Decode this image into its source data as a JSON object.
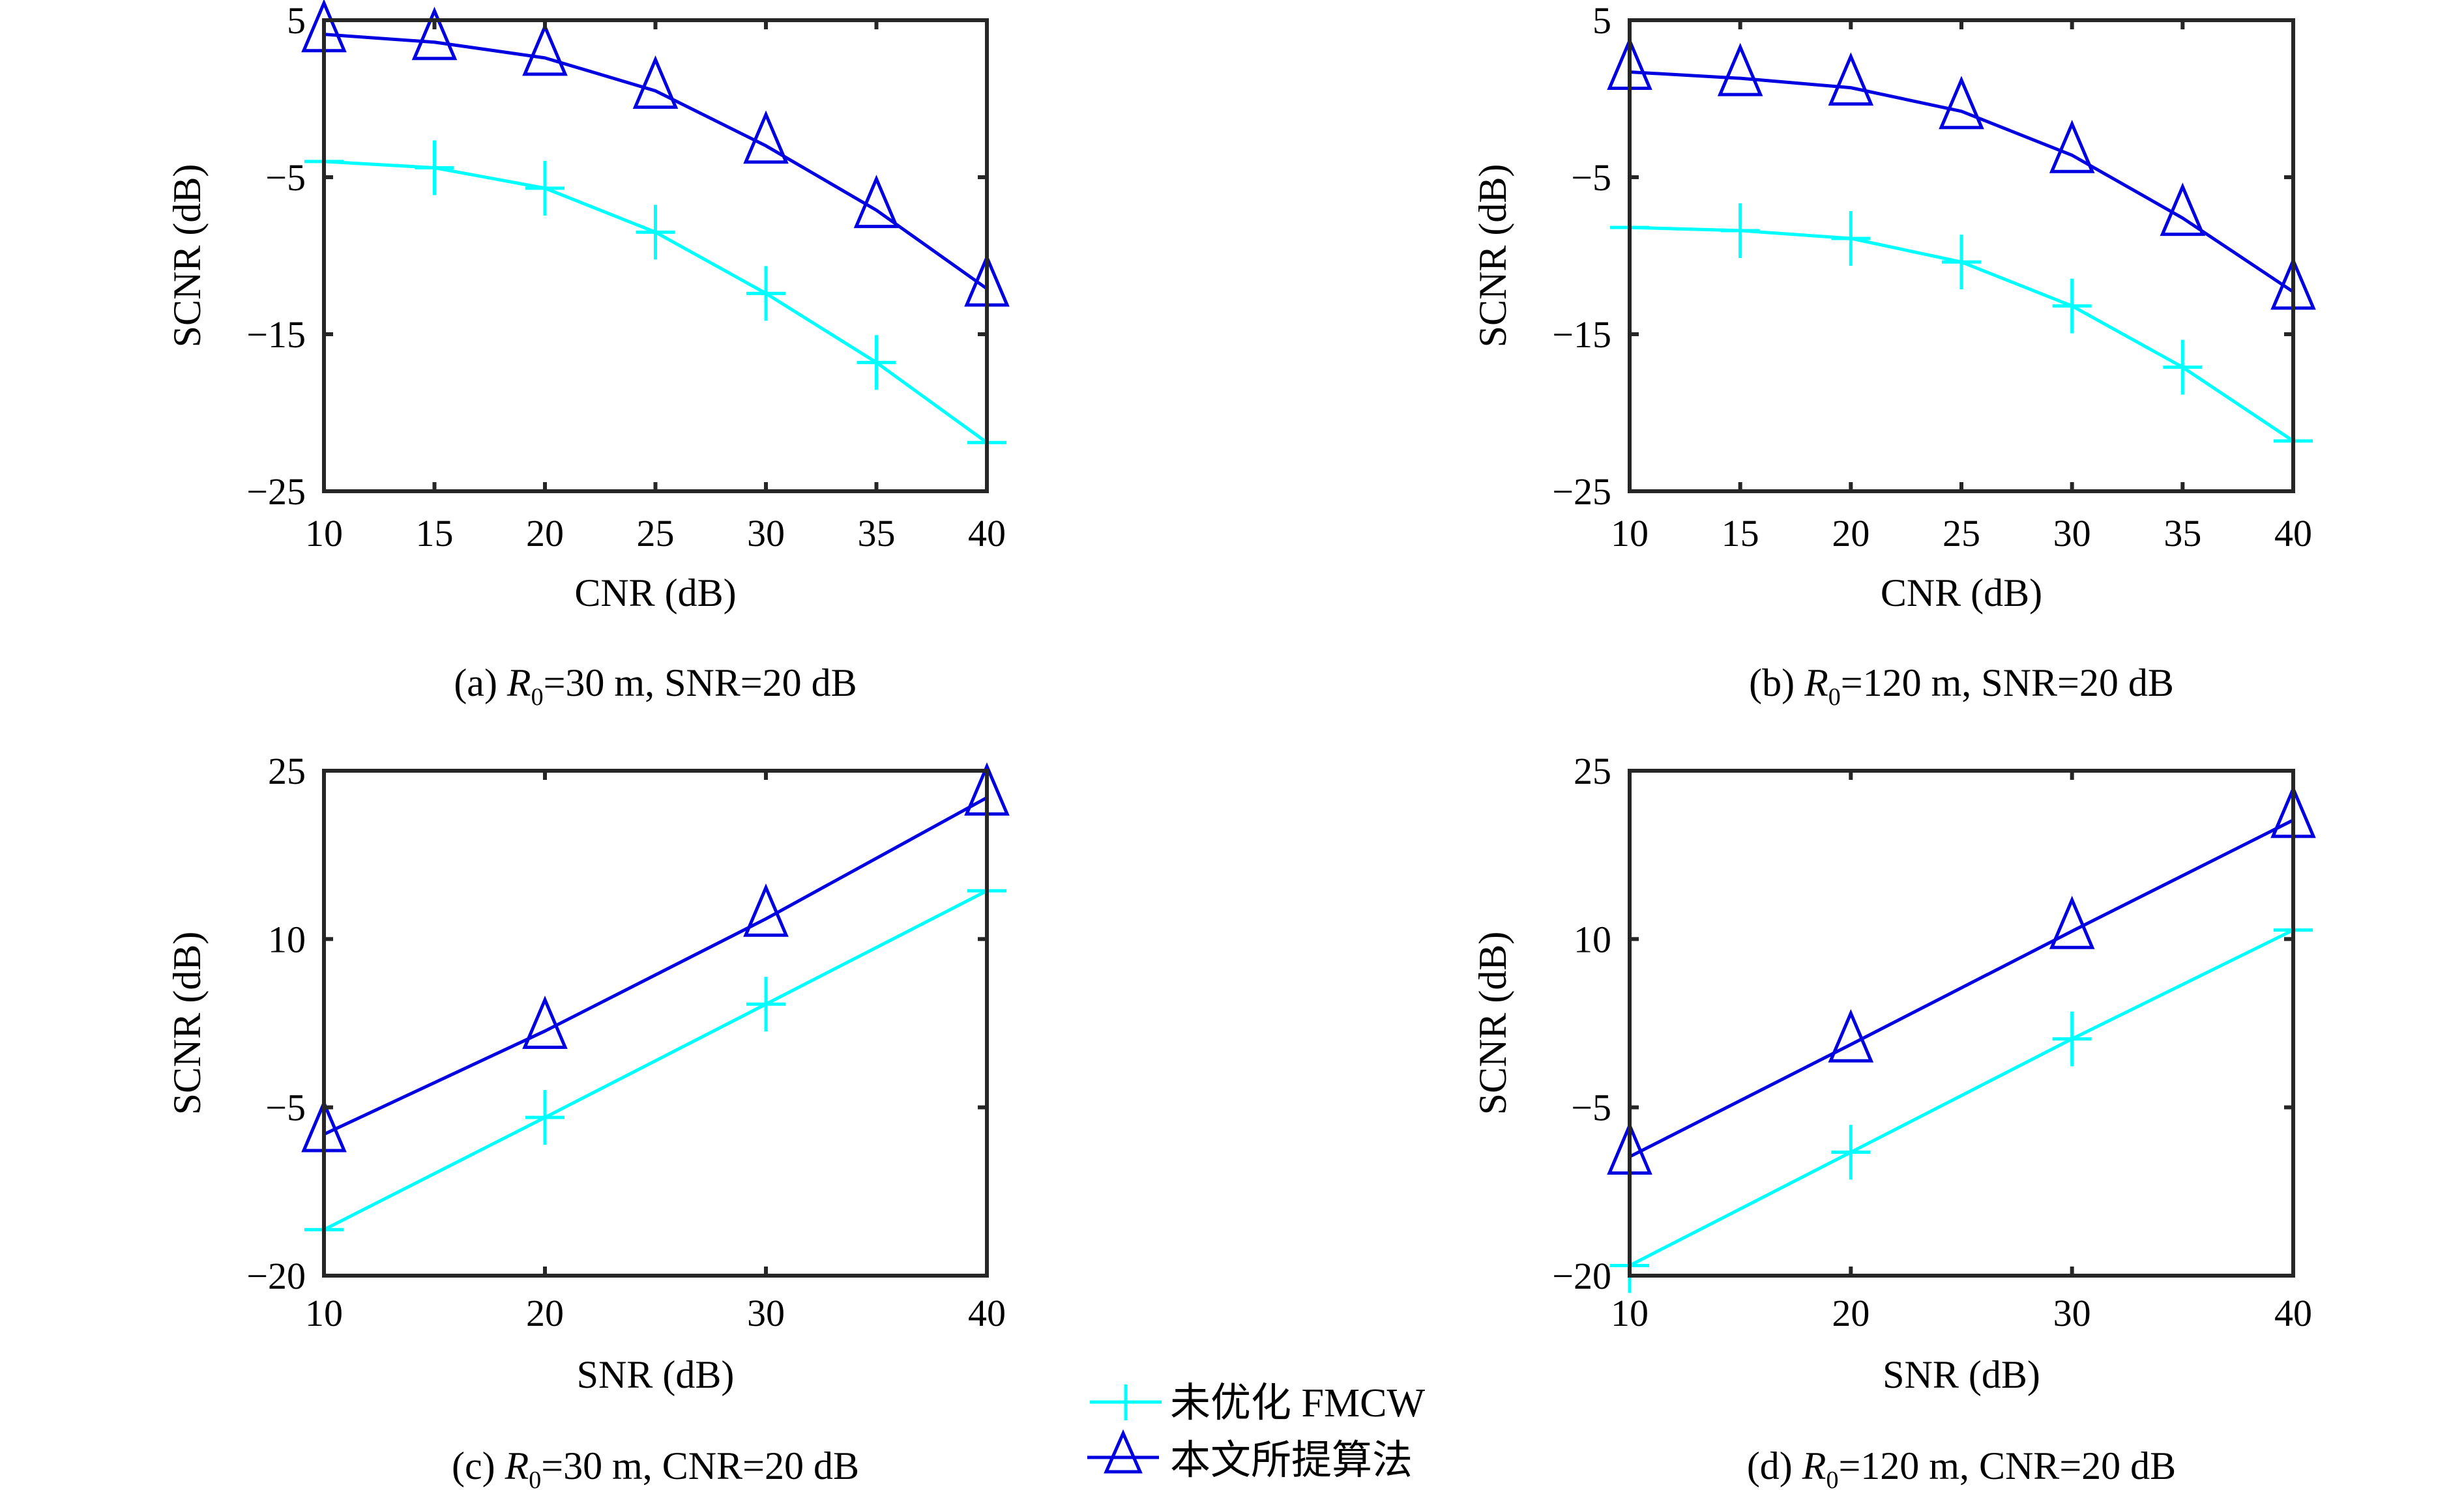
{
  "figure": {
    "legend": {
      "items": [
        {
          "label": "未优化 FMCW",
          "color": "#00FFFF",
          "marker": "plus"
        },
        {
          "label": "本文所提算法",
          "color": "#0000E0",
          "marker": "triangle"
        }
      ]
    }
  },
  "chart_data": [
    {
      "type": "line",
      "panel": "a",
      "caption": {
        "prefix": "(a) ",
        "var": "R",
        "sub": "0",
        "suffix": "=30 m, SNR=20 dB"
      },
      "xlabel": "CNR (dB)",
      "ylabel": "SCNR (dB)",
      "x": [
        10,
        15,
        20,
        25,
        30,
        35,
        40
      ],
      "xlim": [
        10,
        40
      ],
      "ylim": [
        -25,
        5
      ],
      "xticks": [
        10,
        15,
        20,
        25,
        30,
        35,
        40
      ],
      "xtick_labels": [
        "10",
        "15",
        "20",
        "25",
        "30",
        "35",
        "40"
      ],
      "yticks": [
        5,
        -5,
        -15,
        -25
      ],
      "ytick_labels": [
        "5",
        "−5",
        "−15",
        "−25"
      ],
      "grid": false,
      "series": [
        {
          "name": "未优化 FMCW",
          "marker": "plus",
          "color": "#00FFFF",
          "values": [
            -4.0,
            -4.4,
            -5.7,
            -8.5,
            -12.4,
            -16.8,
            -21.9
          ]
        },
        {
          "name": "本文所提算法",
          "marker": "triangle",
          "color": "#0000E0",
          "values": [
            4.1,
            3.6,
            2.6,
            0.5,
            -3.0,
            -7.1,
            -12.1
          ]
        }
      ]
    },
    {
      "type": "line",
      "panel": "b",
      "caption": {
        "prefix": "(b) ",
        "var": "R",
        "sub": "0",
        "suffix": "=120 m, SNR=20 dB"
      },
      "xlabel": "CNR (dB)",
      "ylabel": "SCNR (dB)",
      "x": [
        10,
        15,
        20,
        25,
        30,
        35,
        40
      ],
      "xlim": [
        10,
        40
      ],
      "ylim": [
        -25,
        5
      ],
      "xticks": [
        10,
        15,
        20,
        25,
        30,
        35,
        40
      ],
      "xtick_labels": [
        "10",
        "15",
        "20",
        "25",
        "30",
        "35",
        "40"
      ],
      "yticks": [
        5,
        -5,
        -15,
        -25
      ],
      "ytick_labels": [
        "5",
        "−5",
        "−15",
        "−25"
      ],
      "grid": false,
      "series": [
        {
          "name": "未优化 FMCW",
          "marker": "plus",
          "color": "#00FFFF",
          "values": [
            -8.2,
            -8.4,
            -8.9,
            -10.4,
            -13.2,
            -17.1,
            -21.8
          ]
        },
        {
          "name": "本文所提算法",
          "marker": "triangle",
          "color": "#0000E0",
          "values": [
            1.7,
            1.3,
            0.7,
            -0.8,
            -3.6,
            -7.6,
            -12.3
          ]
        }
      ]
    },
    {
      "type": "line",
      "panel": "c",
      "caption": {
        "prefix": "(c) ",
        "var": "R",
        "sub": "0",
        "suffix": "=30 m, CNR=20 dB"
      },
      "xlabel": "SNR (dB)",
      "ylabel": "SCNR (dB)",
      "x": [
        10,
        20,
        30,
        40
      ],
      "xlim": [
        10,
        40
      ],
      "ylim": [
        -20,
        25
      ],
      "xticks": [
        10,
        20,
        30,
        40
      ],
      "xtick_labels": [
        "10",
        "20",
        "30",
        "40"
      ],
      "yticks": [
        25,
        10,
        -5,
        -20
      ],
      "ytick_labels": [
        "25",
        "10",
        "−5",
        "−20"
      ],
      "grid": false,
      "series": [
        {
          "name": "未优化 FMCW",
          "marker": "plus",
          "color": "#00FFFF",
          "values": [
            -15.9,
            -5.9,
            4.2,
            14.3
          ]
        },
        {
          "name": "本文所提算法",
          "marker": "triangle",
          "color": "#0000E0",
          "values": [
            -7.4,
            1.8,
            11.8,
            22.6
          ]
        }
      ]
    },
    {
      "type": "line",
      "panel": "d",
      "caption": {
        "prefix": "(d) ",
        "var": "R",
        "sub": "0",
        "suffix": "=120 m, CNR=20 dB"
      },
      "xlabel": "SNR (dB)",
      "ylabel": "SCNR (dB)",
      "x": [
        10,
        20,
        30,
        40
      ],
      "xlim": [
        10,
        40
      ],
      "ylim": [
        -20,
        25
      ],
      "xticks": [
        10,
        20,
        30,
        40
      ],
      "xtick_labels": [
        "10",
        "20",
        "30",
        "40"
      ],
      "yticks": [
        25,
        10,
        -5,
        -20
      ],
      "ytick_labels": [
        "25",
        "10",
        "−5",
        "−20"
      ],
      "grid": false,
      "series": [
        {
          "name": "未优化 FMCW",
          "marker": "plus",
          "color": "#00FFFF",
          "values": [
            -19.1,
            -9.0,
            1.1,
            10.8
          ]
        },
        {
          "name": "本文所提算法",
          "marker": "triangle",
          "color": "#0000E0",
          "values": [
            -9.4,
            0.6,
            10.7,
            20.6
          ]
        }
      ]
    }
  ]
}
